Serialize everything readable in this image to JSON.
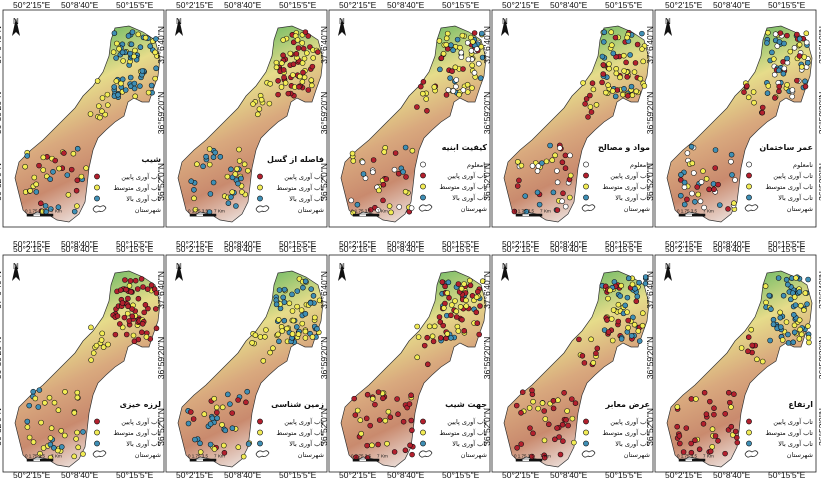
{
  "coords": {
    "top": [
      "50°2'15\"E",
      "50°8'40\"E",
      "50°15'5\"E"
    ],
    "bottom": [
      "50°2'15\"E",
      "50°8'40\"E",
      "50°15'5\"E"
    ],
    "side": [
      "37°6'40\"N",
      "36°59'20\"N",
      "36°52'0\"N"
    ]
  },
  "scale": {
    "ticks": "0 1.75 3.5",
    "end": "7",
    "unit": "Km"
  },
  "north": "N",
  "legend_common": {
    "low": "تاب آوری پایین",
    "medium": "تاب آوری متوسط",
    "high": "تاب آوری بالا",
    "unknown": "نامعلوم",
    "city": "شهرستان"
  },
  "colors": {
    "low": "#b3202e",
    "medium": "#f2ec55",
    "high": "#3f8fb5",
    "unknown": "#ffffff",
    "terrain_high": "#2e8b4e",
    "terrain_mid": "#e6dc8a",
    "terrain_low": "#c98a6e"
  },
  "maps": [
    {
      "title": "شیب",
      "has_unknown": false
    },
    {
      "title": "فاصله از گسل",
      "has_unknown": false
    },
    {
      "title": "کیفیت ابنیه",
      "has_unknown": true
    },
    {
      "title": "مواد و مصالح",
      "has_unknown": true
    },
    {
      "title": "عمر ساختمان",
      "has_unknown": true
    },
    {
      "title": "لرزه خیزی",
      "has_unknown": false
    },
    {
      "title": "زمین شناسی",
      "has_unknown": false
    },
    {
      "title": "جهت شیب",
      "has_unknown": false
    },
    {
      "title": "عرض معابر",
      "has_unknown": false
    },
    {
      "title": "ارتفاع",
      "has_unknown": false
    }
  ]
}
